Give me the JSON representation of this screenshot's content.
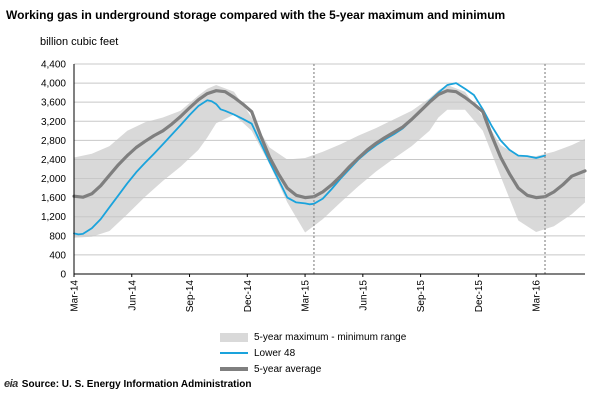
{
  "title": "Working gas in underground storage compared with the  5-year maximum and minimum",
  "source": {
    "logo": "eia",
    "text": "Source:  U. S. Energy Information Administration"
  },
  "chart_data": {
    "type": "line",
    "ylabel": "billion  cubic feet",
    "xlabel": "",
    "ylim": [
      0,
      4400
    ],
    "yticks": [
      "0",
      "400",
      "800",
      "1,200",
      "1,600",
      "2,000",
      "2,400",
      "2,800",
      "3,200",
      "3,600",
      "4,000",
      "4,400"
    ],
    "xlim": [
      0,
      115
    ],
    "x_unit": "weeks from Mar-14",
    "x_labels": [
      {
        "x": 0,
        "label": "Mar-14"
      },
      {
        "x": 13,
        "label": "Jun-14"
      },
      {
        "x": 26,
        "label": "Sep-14"
      },
      {
        "x": 39,
        "label": "Dec-14"
      },
      {
        "x": 52,
        "label": "Mar-15"
      },
      {
        "x": 65,
        "label": "Jun-15"
      },
      {
        "x": 78,
        "label": "Sep-15"
      },
      {
        "x": 91,
        "label": "Dec-15"
      },
      {
        "x": 104,
        "label": "Mar-16"
      }
    ],
    "vlines": [
      54,
      106
    ],
    "series": [
      {
        "name": "5-year maximum - minimum range",
        "kind": "band",
        "x": [
          0,
          4,
          8,
          12,
          16,
          20,
          24,
          28,
          30,
          32,
          36,
          40,
          44,
          48,
          52,
          56,
          60,
          64,
          68,
          72,
          76,
          80,
          82,
          84,
          88,
          92,
          96,
          100,
          104,
          108,
          112,
          115
        ],
        "upper": [
          2440,
          2520,
          2680,
          3000,
          3180,
          3280,
          3420,
          3740,
          3880,
          3960,
          3820,
          3280,
          2650,
          2400,
          2430,
          2560,
          2720,
          2900,
          3060,
          3240,
          3420,
          3680,
          3850,
          3960,
          3820,
          3300,
          2700,
          2480,
          2470,
          2560,
          2700,
          2830
        ],
        "lower": [
          760,
          780,
          900,
          1250,
          1620,
          1950,
          2250,
          2600,
          2860,
          3160,
          3340,
          3000,
          2300,
          1500,
          870,
          1150,
          1500,
          1840,
          2150,
          2420,
          2680,
          3000,
          3280,
          3440,
          3440,
          3000,
          2050,
          1120,
          880,
          1000,
          1250,
          1500
        ]
      },
      {
        "name": "Lower 48",
        "kind": "line",
        "color": "#1aa3dc",
        "x": [
          0,
          1,
          2,
          4,
          6,
          8,
          10,
          12,
          14,
          16,
          18,
          20,
          22,
          24,
          26,
          28,
          30,
          31,
          32,
          33,
          34,
          36,
          38,
          40,
          42,
          44,
          46,
          48,
          50,
          52,
          53,
          54,
          56,
          58,
          60,
          62,
          64,
          66,
          68,
          70,
          72,
          74,
          76,
          78,
          80,
          82,
          84,
          86,
          88,
          90,
          92,
          94,
          96,
          98,
          100,
          102,
          104,
          106
        ],
        "values": [
          850,
          830,
          840,
          960,
          1150,
          1400,
          1650,
          1900,
          2130,
          2330,
          2520,
          2720,
          2920,
          3120,
          3330,
          3520,
          3640,
          3620,
          3560,
          3450,
          3420,
          3340,
          3250,
          3150,
          2750,
          2350,
          1980,
          1600,
          1500,
          1480,
          1460,
          1470,
          1580,
          1780,
          2000,
          2200,
          2400,
          2560,
          2700,
          2820,
          2930,
          3050,
          3230,
          3420,
          3630,
          3800,
          3960,
          4000,
          3880,
          3750,
          3450,
          3100,
          2800,
          2600,
          2480,
          2470,
          2430,
          2480
        ]
      },
      {
        "name": "5-year average",
        "kind": "line",
        "color": "#7f7f7f",
        "x": [
          0,
          2,
          4,
          6,
          8,
          10,
          12,
          14,
          16,
          18,
          20,
          22,
          24,
          26,
          28,
          30,
          32,
          34,
          36,
          38,
          40,
          42,
          44,
          46,
          48,
          50,
          52,
          54,
          56,
          58,
          60,
          62,
          64,
          66,
          68,
          70,
          72,
          74,
          76,
          78,
          80,
          82,
          84,
          86,
          88,
          90,
          92,
          94,
          96,
          98,
          100,
          102,
          104,
          106,
          108,
          110,
          112,
          115
        ],
        "values": [
          1630,
          1610,
          1680,
          1850,
          2070,
          2290,
          2480,
          2650,
          2780,
          2900,
          3000,
          3140,
          3300,
          3480,
          3650,
          3780,
          3840,
          3820,
          3700,
          3560,
          3400,
          2900,
          2450,
          2100,
          1800,
          1650,
          1600,
          1620,
          1720,
          1870,
          2050,
          2250,
          2430,
          2600,
          2740,
          2860,
          2970,
          3080,
          3240,
          3420,
          3600,
          3760,
          3840,
          3820,
          3700,
          3560,
          3400,
          2900,
          2450,
          2100,
          1800,
          1650,
          1600,
          1620,
          1720,
          1870,
          2050,
          2160
        ]
      }
    ],
    "legend": [
      "5-year maximum - minimum range",
      "Lower 48",
      "5-year average"
    ],
    "legend_position": "bottom",
    "grid": true
  }
}
